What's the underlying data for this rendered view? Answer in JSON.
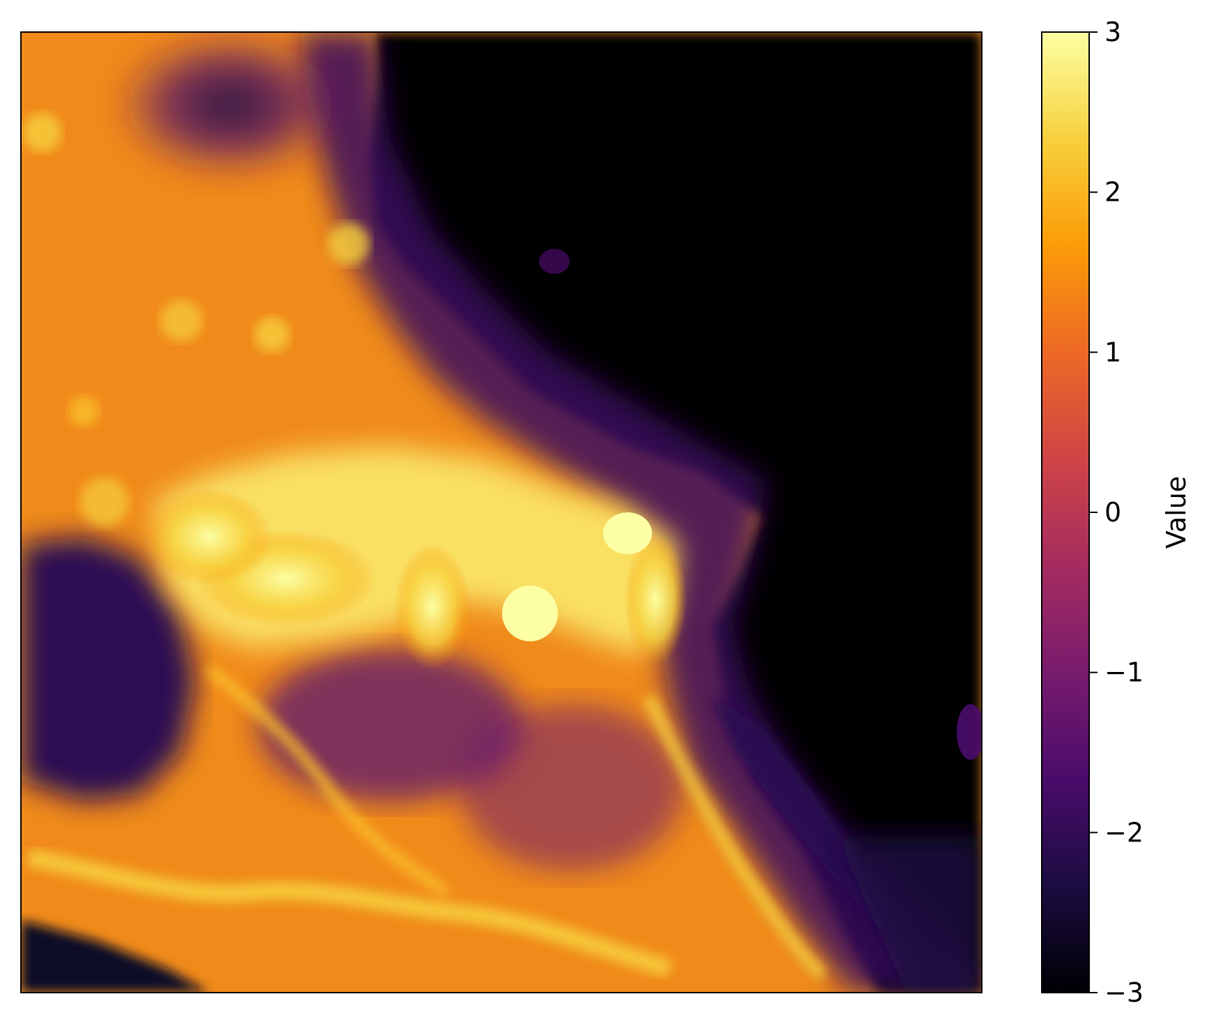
{
  "chart_data": {
    "type": "heatmap",
    "title": "",
    "xlabel": "",
    "ylabel": "",
    "x_ticks_visible": false,
    "y_ticks_visible": false,
    "colormap": "inferno",
    "colormap_stops": [
      "#000004",
      "#1b0c41",
      "#4a0c6b",
      "#781c6d",
      "#a52c60",
      "#cf4446",
      "#ed6925",
      "#fb9b06",
      "#f7d13d",
      "#fcffa4"
    ],
    "value_range": [
      -3,
      3
    ],
    "colorbar": {
      "label": "Value",
      "ticks": [
        3,
        2,
        1,
        0,
        -1,
        -2,
        -3
      ],
      "tick_labels": [
        "3",
        "2",
        "1",
        "0",
        "−1",
        "−2",
        "−3"
      ],
      "position": "right"
    },
    "description_regions": {
      "upper_right": -3,
      "center_plateau": 3,
      "west_highland": 1.5,
      "southwest_basin": -2,
      "south_ridges": 2
    }
  }
}
